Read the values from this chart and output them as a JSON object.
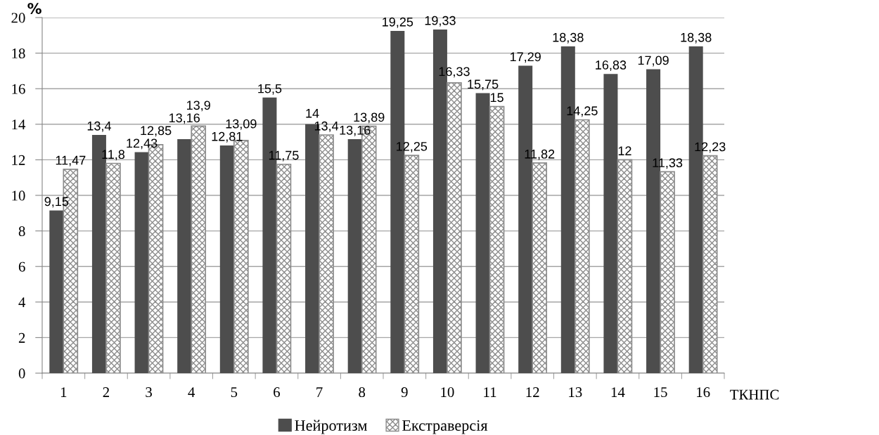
{
  "chart_data": {
    "type": "bar",
    "ylabel": "%",
    "xlabel": "ТКНПС",
    "categories": [
      "1",
      "2",
      "3",
      "4",
      "5",
      "6",
      "7",
      "8",
      "9",
      "10",
      "11",
      "12",
      "13",
      "14",
      "15",
      "16"
    ],
    "series": [
      {
        "name": "Нейротизм",
        "color": "#4d4d4d",
        "values": [
          9.15,
          13.4,
          12.43,
          13.16,
          12.81,
          15.5,
          14,
          13.16,
          19.25,
          19.33,
          15.75,
          17.29,
          18.38,
          16.83,
          17.09,
          18.38
        ],
        "value_labels": [
          "9,15",
          "13,4",
          "12,43",
          "13,16",
          "12,81",
          "15,5",
          "14",
          "13,16",
          "19,25",
          "19,33",
          "15,75",
          "17,29",
          "18,38",
          "16,83",
          "17,09",
          "18,38"
        ]
      },
      {
        "name": "Екстраверсія",
        "color": "#8c8c8c",
        "values": [
          11.47,
          11.8,
          12.85,
          13.9,
          13.09,
          11.75,
          13.4,
          13.89,
          12.25,
          16.33,
          15,
          11.82,
          14.25,
          12,
          11.33,
          12.23
        ],
        "value_labels": [
          "11,47",
          "11,8",
          "12,85",
          "13,9",
          "13,09",
          "11,75",
          "13,4",
          "13,89",
          "12,25",
          "16,33",
          "15",
          "11,82",
          "14,25",
          "12",
          "11,33",
          "12,23"
        ]
      }
    ],
    "ylim": [
      0,
      20
    ],
    "yticks": [
      0,
      2,
      4,
      6,
      8,
      10,
      12,
      14,
      16,
      18,
      20
    ],
    "grid": "y",
    "legend": "bottom"
  }
}
